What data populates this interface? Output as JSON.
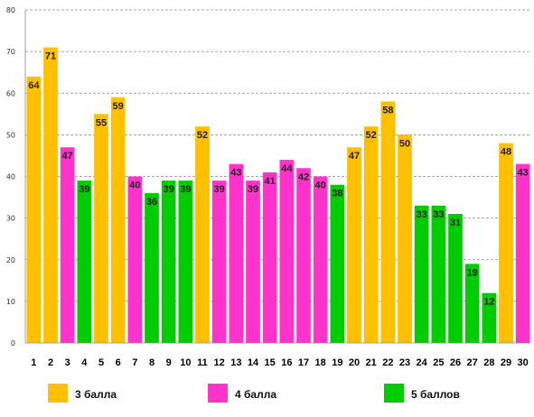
{
  "chart_data": {
    "type": "bar",
    "title": "",
    "xlabel": "",
    "ylabel": "",
    "ylim": [
      0,
      80
    ],
    "yticks": [
      0,
      10,
      20,
      30,
      40,
      50,
      60,
      70,
      80
    ],
    "grid": "y-dashed",
    "legend_position": "bottom",
    "categories": [
      "1",
      "2",
      "3",
      "4",
      "5",
      "6",
      "7",
      "8",
      "9",
      "10",
      "11",
      "12",
      "13",
      "14",
      "15",
      "16",
      "17",
      "18",
      "19",
      "20",
      "21",
      "22",
      "23",
      "24",
      "25",
      "26",
      "27",
      "28",
      "29",
      "30"
    ],
    "values": [
      64,
      71,
      47,
      39,
      55,
      59,
      40,
      36,
      39,
      39,
      52,
      39,
      43,
      39,
      41,
      44,
      42,
      40,
      38,
      47,
      52,
      58,
      50,
      33,
      33,
      31,
      19,
      12,
      48,
      43
    ],
    "groups": [
      "3",
      "3",
      "4",
      "5",
      "3",
      "3",
      "4",
      "5",
      "5",
      "5",
      "3",
      "4",
      "4",
      "4",
      "4",
      "4",
      "4",
      "4",
      "5",
      "3",
      "3",
      "3",
      "3",
      "5",
      "5",
      "5",
      "5",
      "5",
      "3",
      "4"
    ],
    "legend": [
      {
        "key": "3",
        "label": "3 балла",
        "color": "#FFC000"
      },
      {
        "key": "4",
        "label": "4 балла",
        "color": "#FF33CC"
      },
      {
        "key": "5",
        "label": "5 баллов",
        "color": "#00CC00"
      }
    ]
  }
}
